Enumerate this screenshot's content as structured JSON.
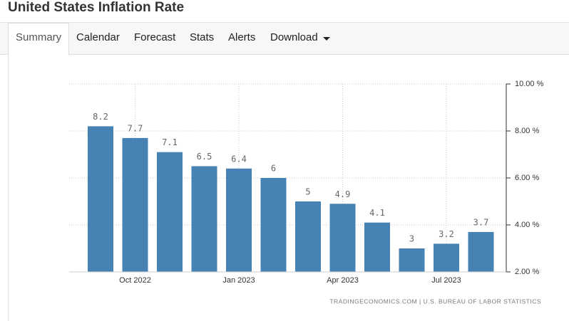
{
  "page": {
    "title": "United States Inflation Rate",
    "tabs": [
      "Summary",
      "Calendar",
      "Forecast",
      "Stats",
      "Alerts",
      "Download"
    ]
  },
  "chart_data": {
    "type": "bar",
    "categories": [
      null,
      "Oct 2022",
      null,
      null,
      "Jan 2023",
      null,
      null,
      "Apr 2023",
      null,
      null,
      "Jul 2023",
      null
    ],
    "values": [
      8.2,
      7.7,
      7.1,
      6.5,
      6.4,
      6,
      5,
      4.9,
      4.1,
      3,
      3.2,
      3.7
    ],
    "color": "#4682b4",
    "ylim": [
      2,
      10
    ],
    "yticks": [
      {
        "value": 2,
        "label": "2.00 %"
      },
      {
        "value": 4,
        "label": "4.00 %"
      },
      {
        "value": 6,
        "label": "6.00 %"
      },
      {
        "value": 8,
        "label": "8.00 %"
      },
      {
        "value": 10,
        "label": "10.00 %"
      }
    ],
    "grid": true,
    "source": "TRADINGECONOMICS.COM | U.S. BUREAU OF LABOR STATISTICS"
  }
}
